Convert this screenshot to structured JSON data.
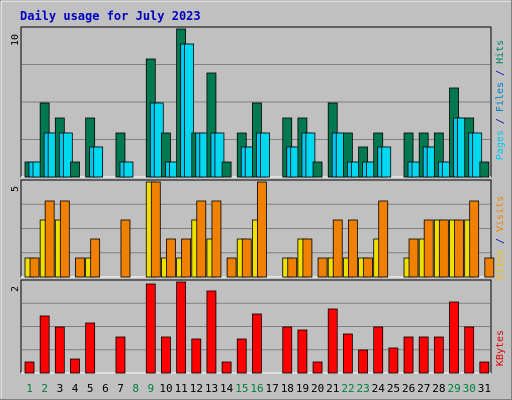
{
  "chart_data": [
    {
      "type": "bar",
      "title": "Daily usage for July 2023",
      "categories": [
        "1",
        "2",
        "3",
        "4",
        "5",
        "6",
        "7",
        "8",
        "9",
        "10",
        "11",
        "12",
        "13",
        "14",
        "15",
        "16",
        "17",
        "18",
        "19",
        "20",
        "21",
        "22",
        "23",
        "24",
        "25",
        "26",
        "27",
        "28",
        "29",
        "30",
        "31"
      ],
      "category_colors": [
        "#008040",
        "#008040",
        "#000000",
        "#000000",
        "#000000",
        "#000000",
        "#000000",
        "#008040",
        "#008040",
        "#000000",
        "#000000",
        "#000000",
        "#000000",
        "#000000",
        "#008040",
        "#008040",
        "#000000",
        "#000000",
        "#000000",
        "#000000",
        "#000000",
        "#008040",
        "#008040",
        "#000000",
        "#000000",
        "#000000",
        "#000000",
        "#000000",
        "#008040",
        "#008040",
        "#000000"
      ],
      "ytick": "10",
      "ylim": [
        0,
        10
      ],
      "axis_label_parts": [
        {
          "text": "Pages",
          "color": "#00c8f0"
        },
        {
          "text": " / ",
          "color": "#0000c0"
        },
        {
          "text": "Files",
          "color": "#0080c0"
        },
        {
          "text": " / ",
          "color": "#0000c0"
        },
        {
          "text": "Hits",
          "color": "#008060"
        }
      ],
      "series": [
        {
          "name": "Hits",
          "color": "#007850",
          "values": [
            1,
            5,
            4,
            1,
            4,
            0,
            3,
            0,
            8,
            3,
            10,
            3,
            7,
            1,
            3,
            5,
            0,
            4,
            4,
            1,
            5,
            3,
            2,
            3,
            0,
            3,
            3,
            3,
            6,
            4,
            1
          ]
        },
        {
          "name": "Files",
          "color": "#00c8f0",
          "values": [
            1,
            3,
            3,
            0,
            2,
            0,
            1,
            0,
            5,
            1,
            9,
            3,
            3,
            0,
            2,
            3,
            0,
            2,
            3,
            0,
            3,
            1,
            1,
            2,
            0,
            1,
            2,
            1,
            4,
            3,
            0
          ]
        },
        {
          "name": "Pages",
          "color": "#00d8f0",
          "values": [
            1,
            3,
            3,
            0,
            2,
            0,
            1,
            0,
            5,
            1,
            9,
            3,
            3,
            0,
            2,
            3,
            0,
            2,
            3,
            0,
            3,
            1,
            1,
            2,
            0,
            1,
            2,
            1,
            4,
            3,
            0
          ]
        }
      ]
    },
    {
      "type": "bar",
      "ytick": "5",
      "ylim": [
        0,
        5
      ],
      "axis_label_parts": [
        {
          "text": "Sites",
          "color": "#f0c000"
        },
        {
          "text": " / ",
          "color": "#0000c0"
        },
        {
          "text": "Visits",
          "color": "#f08000"
        }
      ],
      "series": [
        {
          "name": "Sites",
          "color": "#f0e000",
          "values": [
            1,
            3,
            3,
            0,
            1,
            0,
            0,
            0,
            5,
            1,
            1,
            3,
            2,
            0,
            2,
            3,
            0,
            1,
            2,
            0,
            1,
            1,
            1,
            2,
            0,
            1,
            2,
            3,
            3,
            3,
            0
          ]
        },
        {
          "name": "Visits",
          "color": "#f08000",
          "values": [
            1,
            4,
            4,
            1,
            2,
            0,
            3,
            0,
            5,
            2,
            2,
            4,
            4,
            1,
            2,
            5,
            0,
            1,
            2,
            1,
            3,
            3,
            1,
            4,
            0,
            2,
            3,
            3,
            3,
            4,
            1
          ]
        }
      ]
    },
    {
      "type": "bar",
      "ytick": "2",
      "ylim": [
        0,
        2
      ],
      "axis_label_parts": [
        {
          "text": "KBytes",
          "color": "#e00000"
        }
      ],
      "series": [
        {
          "name": "KBytes",
          "color": "#ff0000",
          "values": [
            0.25,
            1.25,
            1.0,
            0.3,
            1.1,
            0,
            0.8,
            0,
            1.95,
            0.8,
            2.0,
            0.75,
            1.8,
            0.25,
            0.75,
            1.3,
            0,
            1.0,
            0.95,
            0.25,
            1.4,
            0.85,
            0.5,
            1.0,
            0.55,
            0.8,
            0.8,
            0.8,
            1.55,
            1.0,
            0.25
          ]
        }
      ]
    }
  ]
}
